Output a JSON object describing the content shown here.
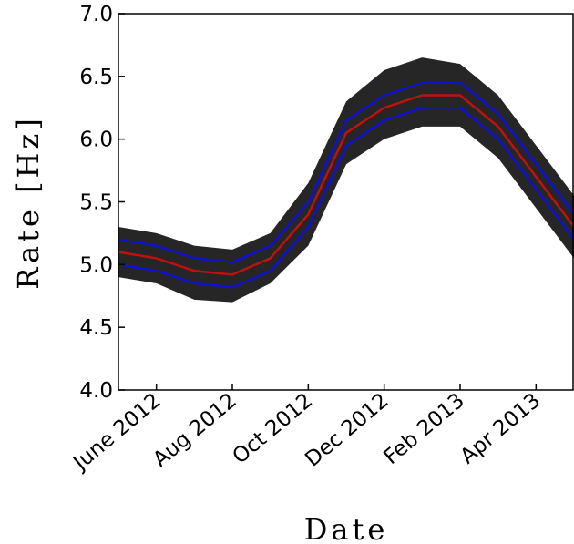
{
  "chart_data": {
    "type": "line",
    "xlabel": "Date",
    "ylabel": "Rate [Hz]",
    "x": [
      "2012-05",
      "2012-06",
      "2012-07",
      "2012-08",
      "2012-09",
      "2012-10",
      "2012-11",
      "2012-12",
      "2013-01",
      "2013-02",
      "2013-03",
      "2013-04",
      "2013-05"
    ],
    "band": {
      "color": "#000000",
      "upper": [
        5.3,
        5.25,
        5.15,
        5.12,
        5.25,
        5.65,
        6.3,
        6.55,
        6.65,
        6.6,
        6.35,
        5.95,
        5.55
      ],
      "lower": [
        4.9,
        4.85,
        4.72,
        4.7,
        4.85,
        5.15,
        5.8,
        6.0,
        6.1,
        6.1,
        5.85,
        5.45,
        5.05
      ]
    },
    "series": [
      {
        "color": "#1010d0",
        "values": [
          5.2,
          5.15,
          5.05,
          5.02,
          5.15,
          5.5,
          6.15,
          6.35,
          6.45,
          6.45,
          6.2,
          5.8,
          5.4
        ]
      },
      {
        "color": "#1010d0",
        "values": [
          5.0,
          4.95,
          4.85,
          4.82,
          4.95,
          5.3,
          5.95,
          6.15,
          6.25,
          6.25,
          6.0,
          5.6,
          5.2
        ]
      },
      {
        "color": "#c01010",
        "values": [
          5.1,
          5.05,
          4.95,
          4.92,
          5.05,
          5.4,
          6.05,
          6.25,
          6.35,
          6.35,
          6.1,
          5.7,
          5.3
        ]
      }
    ],
    "xlim": [
      "2012-05",
      "2013-05"
    ],
    "xticks": [
      {
        "value": "2012-06",
        "label": "June 2012"
      },
      {
        "value": "2012-08",
        "label": "Aug 2012"
      },
      {
        "value": "2012-10",
        "label": "Oct 2012"
      },
      {
        "value": "2012-12",
        "label": "Dec 2012"
      },
      {
        "value": "2013-02",
        "label": "Feb 2013"
      },
      {
        "value": "2013-04",
        "label": "Apr 2013"
      }
    ],
    "ylim": [
      4,
      7
    ],
    "yticks": [
      {
        "value": 4,
        "label": "4.0"
      },
      4.5,
      {
        "value": 5,
        "label": "5.0"
      },
      5.5,
      {
        "value": 6,
        "label": "6.0"
      },
      6.5,
      {
        "value": 7,
        "label": "7.0"
      }
    ]
  }
}
